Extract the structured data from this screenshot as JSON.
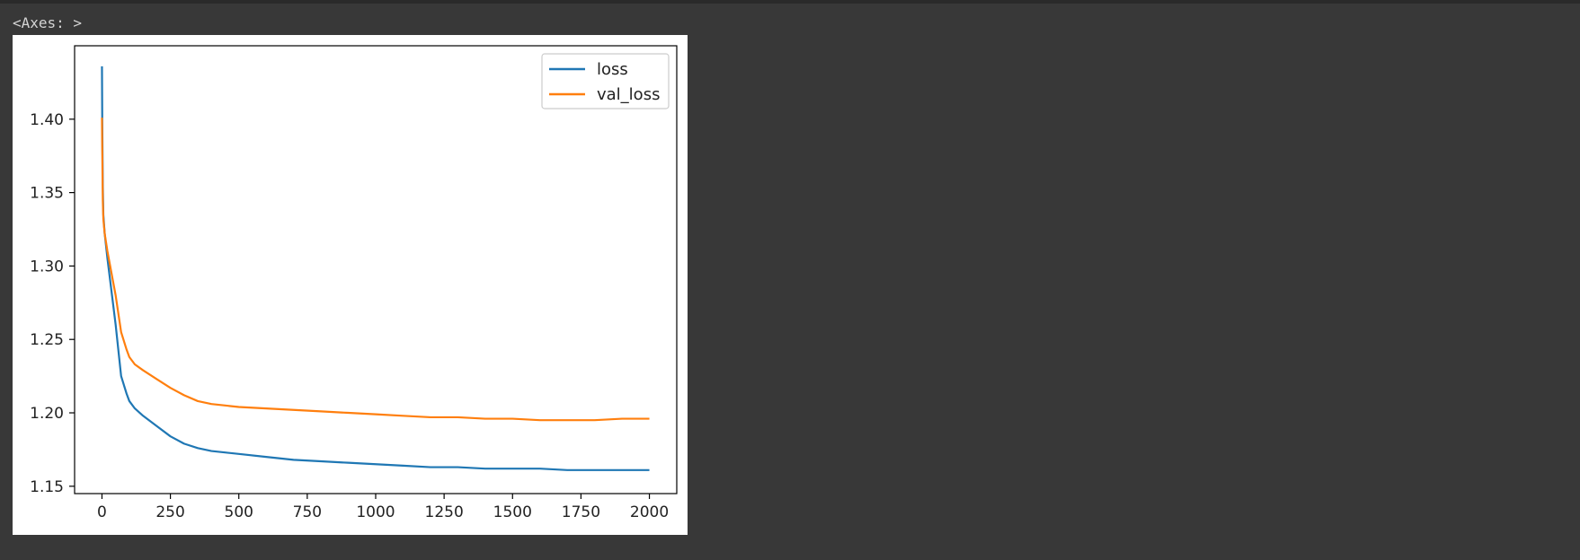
{
  "output": {
    "label": "<Axes: >"
  },
  "chart_data": {
    "type": "line",
    "title": "",
    "xlabel": "",
    "ylabel": "",
    "xlim": [
      -100,
      2100
    ],
    "ylim": [
      1.145,
      1.45
    ],
    "x_ticks": [
      0,
      250,
      500,
      750,
      1000,
      1250,
      1500,
      1750,
      2000
    ],
    "y_ticks": [
      1.15,
      1.2,
      1.25,
      1.3,
      1.35,
      1.4
    ],
    "y_tick_labels": [
      "1.15",
      "1.20",
      "1.25",
      "1.30",
      "1.35",
      "1.40"
    ],
    "grid": false,
    "legend": "upper-right",
    "series": [
      {
        "name": "loss",
        "color": "#1f77b4",
        "x": [
          0,
          1,
          3,
          5,
          10,
          20,
          30,
          50,
          70,
          90,
          100,
          120,
          150,
          200,
          250,
          300,
          350,
          400,
          450,
          500,
          600,
          700,
          800,
          900,
          1000,
          1100,
          1200,
          1300,
          1400,
          1500,
          1600,
          1700,
          1800,
          1900,
          2000
        ],
        "y": [
          1.436,
          1.4,
          1.355,
          1.335,
          1.322,
          1.305,
          1.29,
          1.26,
          1.225,
          1.213,
          1.208,
          1.203,
          1.198,
          1.191,
          1.184,
          1.179,
          1.176,
          1.174,
          1.173,
          1.172,
          1.17,
          1.168,
          1.167,
          1.166,
          1.165,
          1.164,
          1.163,
          1.163,
          1.162,
          1.162,
          1.162,
          1.161,
          1.161,
          1.161,
          1.161
        ]
      },
      {
        "name": "val_loss",
        "color": "#ff7f0e",
        "x": [
          0,
          1,
          3,
          5,
          10,
          20,
          30,
          50,
          70,
          90,
          100,
          120,
          150,
          200,
          250,
          300,
          350,
          400,
          450,
          500,
          600,
          700,
          800,
          900,
          1000,
          1100,
          1200,
          1300,
          1400,
          1500,
          1600,
          1700,
          1800,
          1900,
          2000
        ],
        "y": [
          1.401,
          1.38,
          1.345,
          1.332,
          1.322,
          1.31,
          1.3,
          1.28,
          1.255,
          1.243,
          1.238,
          1.233,
          1.229,
          1.223,
          1.217,
          1.212,
          1.208,
          1.206,
          1.205,
          1.204,
          1.203,
          1.202,
          1.201,
          1.2,
          1.199,
          1.198,
          1.197,
          1.197,
          1.196,
          1.196,
          1.195,
          1.195,
          1.195,
          1.196,
          1.196
        ]
      }
    ]
  }
}
